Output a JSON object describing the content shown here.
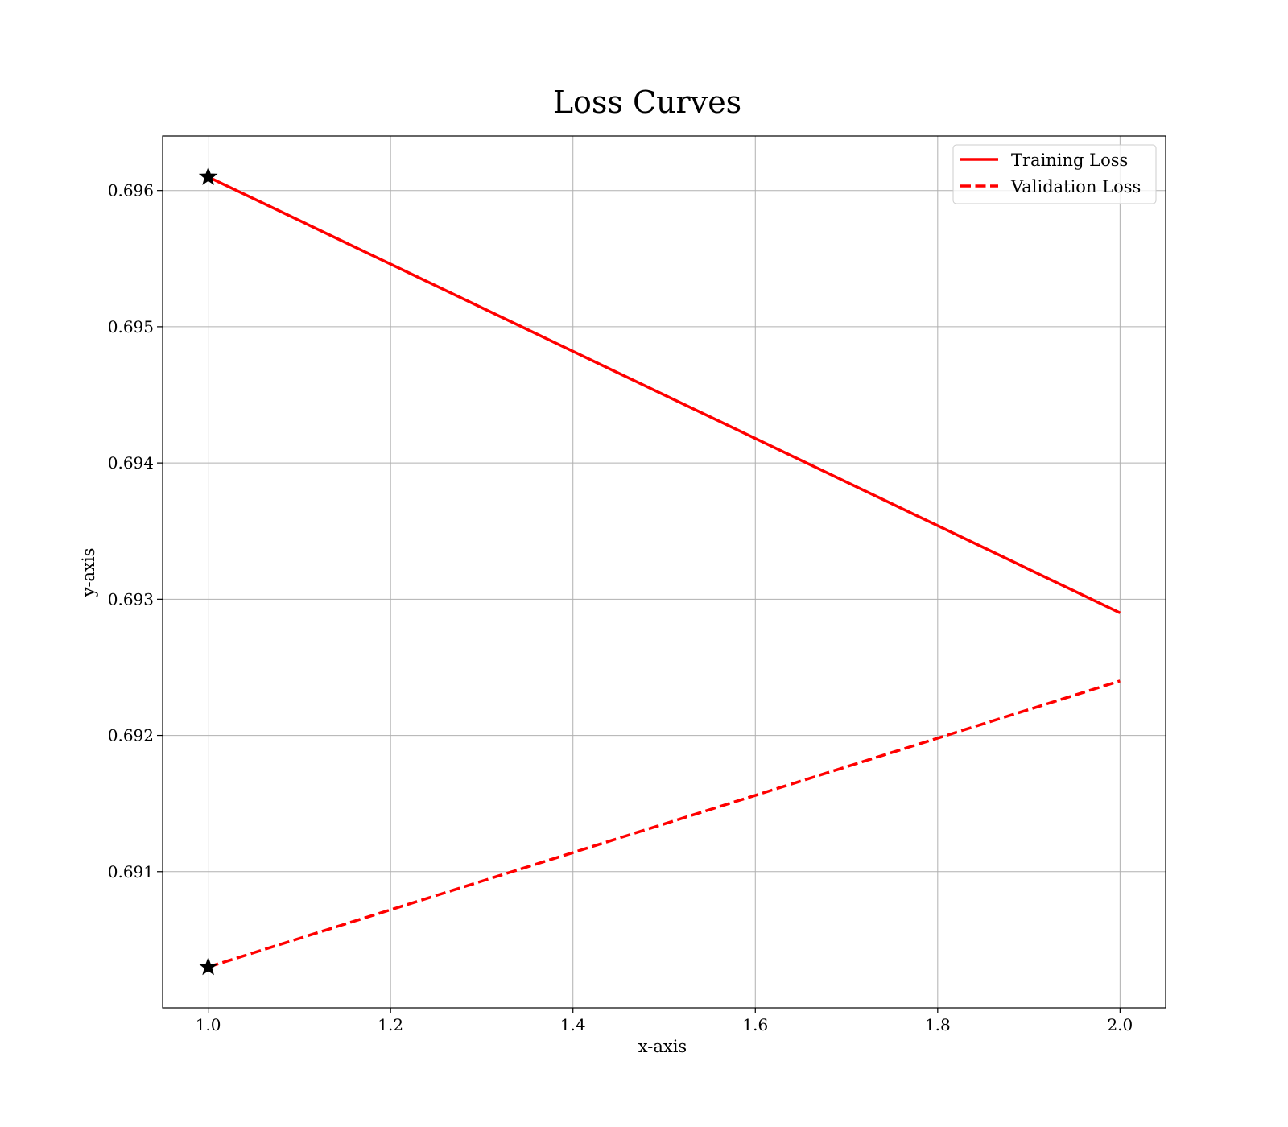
{
  "chart_data": {
    "type": "line",
    "title": "Loss Curves",
    "xlabel": "x-axis",
    "ylabel": "y-axis",
    "xlim": [
      0.95,
      2.05
    ],
    "ylim": [
      0.69,
      0.6964
    ],
    "x_ticks": [
      1.0,
      1.2,
      1.4,
      1.6,
      1.8,
      2.0
    ],
    "x_tick_labels": [
      "1.0",
      "1.2",
      "1.4",
      "1.6",
      "1.8",
      "2.0"
    ],
    "y_ticks": [
      0.691,
      0.692,
      0.693,
      0.694,
      0.695,
      0.696
    ],
    "y_tick_labels": [
      "0.691",
      "0.692",
      "0.693",
      "0.694",
      "0.695",
      "0.696"
    ],
    "grid": true,
    "legend_position": "top-right",
    "series": [
      {
        "name": "Training Loss",
        "x": [
          1.0,
          2.0
        ],
        "y": [
          0.6961,
          0.6929
        ],
        "color": "#ff0000",
        "line_style": "solid",
        "marker_at_first_point": "black-star"
      },
      {
        "name": "Validation Loss",
        "x": [
          1.0,
          2.0
        ],
        "y": [
          0.6903,
          0.6924
        ],
        "color": "#ff0000",
        "line_style": "dashed",
        "marker_at_first_point": "black-star"
      }
    ]
  }
}
